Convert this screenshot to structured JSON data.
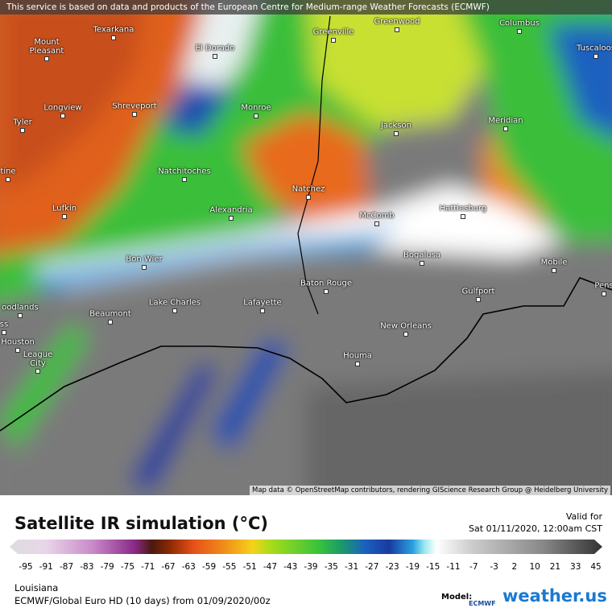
{
  "header": {
    "notice": "This service is based on data and products of the European Centre for Medium-range Weather Forecasts (ECMWF)"
  },
  "map": {
    "cities": [
      "Texarkana",
      "Greenville",
      "Greenwood",
      "Columbus",
      "Mount Pleasant",
      "El Dorado",
      "Tuscaloos",
      "Longview",
      "Shreveport",
      "Monroe",
      "Tyler",
      "Jackson",
      "Meridian",
      "tine",
      "Natchitoches",
      "Natchez",
      "Lufkin",
      "Alexandria",
      "McComb",
      "Hattiesburg",
      "Bon Wier",
      "Bogalusa",
      "Mobile",
      "Baton Rouge",
      "Pens",
      "oodlands",
      "Lake Charles",
      "Lafayette",
      "Gulfport",
      "Beaumont",
      "ss",
      "New Orleans",
      "Houston",
      "League City",
      "Houma"
    ],
    "attribution": "Map data © OpenStreetMap contributors, rendering GIScience Research Group @ Heidelberg University"
  },
  "legend": {
    "title": "Satellite IR simulation (°C)",
    "valid_label": "Valid for",
    "valid_time": "Sat 01/11/2020, 12:00am CST",
    "ticks": [
      -95,
      -91,
      -87,
      -83,
      -79,
      -75,
      -71,
      -67,
      -63,
      -59,
      -55,
      -51,
      -47,
      -43,
      -39,
      -35,
      -31,
      -27,
      -23,
      -19,
      -15,
      -11,
      -7,
      -3,
      2,
      10,
      21,
      33,
      45
    ]
  },
  "footer": {
    "region": "Louisiana",
    "model_run": "ECMWF/Global Euro HD (10 days) from 01/09/2020/00z",
    "model_label": "Model:",
    "model_logo": "ECMWF",
    "brand": "weather.us"
  }
}
